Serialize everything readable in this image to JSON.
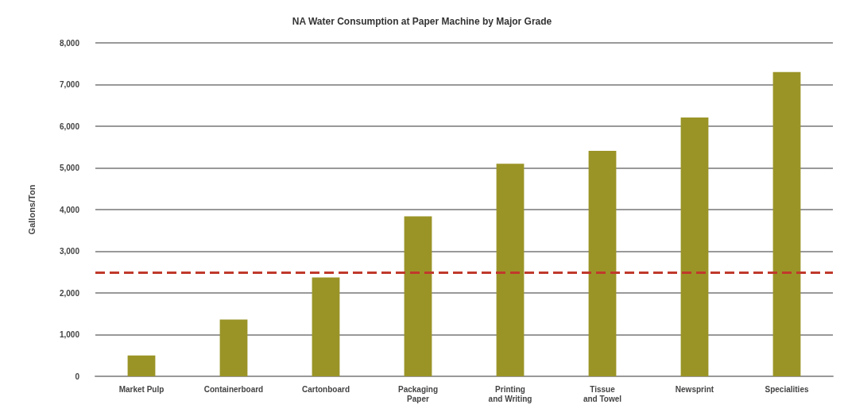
{
  "chart_data": {
    "type": "bar",
    "title": "NA Water Consumption at Paper Machine by Major Grade",
    "ylabel": "Gallons/Ton",
    "categories": [
      "Market Pulp",
      "Containerboard",
      "Cartonboard",
      "Packaging\nPaper",
      "Printing\nand Writing",
      "Tissue\nand Towel",
      "Newsprint",
      "Specialities"
    ],
    "values": [
      500,
      1360,
      2370,
      3840,
      5100,
      5410,
      6210,
      7300
    ],
    "color": "#9a9427",
    "ylim": [
      0,
      8000
    ],
    "yticks": [
      {
        "value": 0,
        "label": "0"
      },
      {
        "value": 1000,
        "label": "1,000"
      },
      {
        "value": 2000,
        "label": "2,000"
      },
      {
        "value": 3000,
        "label": "3,000"
      },
      {
        "value": 4000,
        "label": "4,000"
      },
      {
        "value": 5000,
        "label": "5,000"
      },
      {
        "value": 6000,
        "label": "6,000"
      },
      {
        "value": 7000,
        "label": "7,000"
      },
      {
        "value": 8000,
        "label": "8,000"
      }
    ],
    "grid": "y",
    "ref_lines": [
      {
        "axis": "y",
        "value": 2500,
        "color": "#c0392b",
        "line_style": "dashed"
      }
    ]
  }
}
